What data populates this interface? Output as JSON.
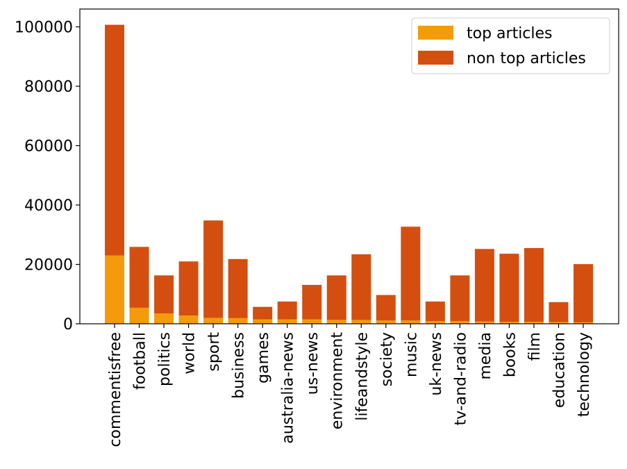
{
  "chart_data": {
    "type": "bar",
    "stacked": true,
    "categories": [
      "commentisfree",
      "football",
      "politics",
      "world",
      "sport",
      "business",
      "games",
      "australia-news",
      "us-news",
      "environment",
      "lifeandstyle",
      "society",
      "music",
      "uk-news",
      "tv-and-radio",
      "media",
      "books",
      "film",
      "education",
      "technology"
    ],
    "series": [
      {
        "name": "top articles",
        "color": "#F59A0A",
        "values": [
          23000,
          5400,
          3500,
          2800,
          2000,
          1900,
          1500,
          1500,
          1500,
          1300,
          1300,
          1100,
          1100,
          900,
          900,
          800,
          700,
          700,
          600,
          500
        ]
      },
      {
        "name": "non top articles",
        "color": "#D44E10",
        "values": [
          77700,
          20500,
          12800,
          18200,
          32800,
          19900,
          4200,
          6000,
          11600,
          15000,
          22100,
          8600,
          31600,
          6600,
          15400,
          24400,
          22900,
          24800,
          6700,
          19600
        ]
      }
    ],
    "yticks": [
      0,
      20000,
      40000,
      60000,
      80000,
      100000
    ],
    "ylim": [
      0,
      106000
    ],
    "legend_position": "top-right",
    "title": "",
    "xlabel": "",
    "ylabel": ""
  }
}
